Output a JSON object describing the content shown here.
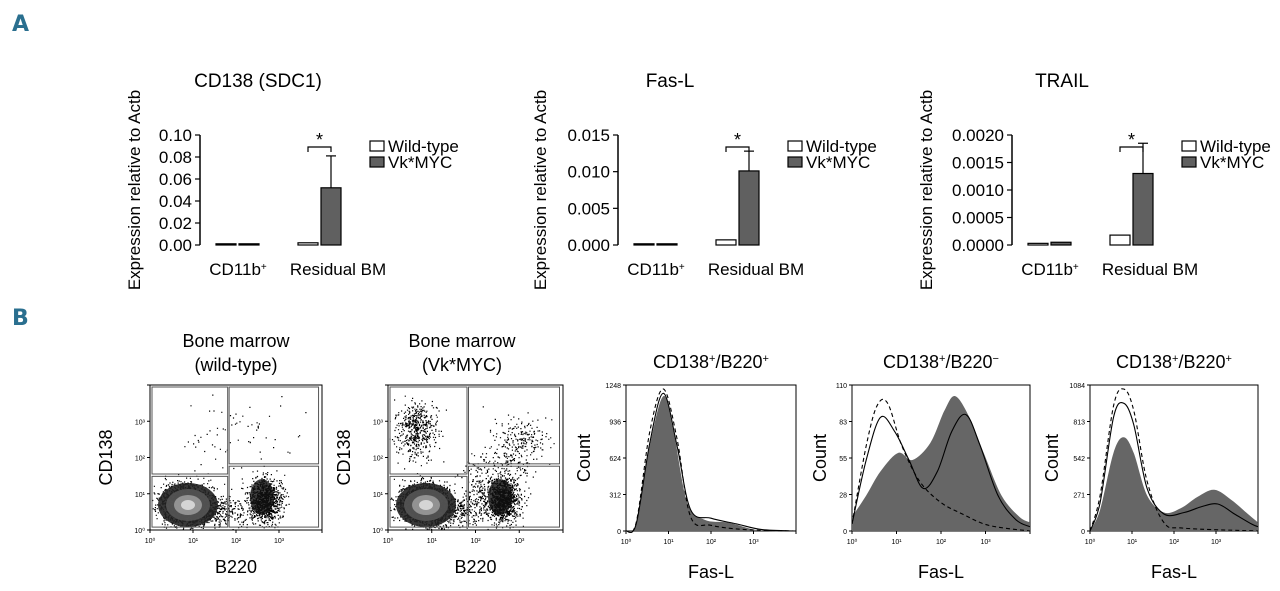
{
  "panel_labels": [
    "A",
    "B"
  ],
  "panelA": {
    "ylabel": "Expression relative to Actb",
    "legend": [
      "Wild-type",
      "Vk*MYC"
    ],
    "x_category_1": "CD11b",
    "x_category_1_sup": "+",
    "x_category_2": "Residual BM",
    "significance": "*",
    "colors": {
      "wildtype_fill": "#ffffff",
      "vkmyc_fill": "#606060",
      "stroke": "#000000"
    }
  },
  "panelB": {
    "dot_plots": [
      {
        "title_line1": "Bone marrow",
        "title_line2": "(wild-type)",
        "xlabel": "B220",
        "ylabel": "CD138"
      },
      {
        "title_line1": "Bone marrow",
        "title_line2": "(Vk*MYC)",
        "xlabel": "B220",
        "ylabel": "CD138"
      }
    ],
    "histograms": [
      {
        "title": "CD138+/B220+",
        "title_main": "CD138",
        "sup1": "+",
        "mid": "/B220",
        "sup2": "+",
        "xlabel": "Fas-L",
        "ylabel": "Count",
        "yticks": [
          "0",
          "312",
          "624",
          "936",
          "1248"
        ]
      },
      {
        "title": "CD138+/B220−",
        "title_main": "CD138",
        "sup1": "+",
        "mid": "/B220",
        "sup2": "−",
        "xlabel": "Fas-L",
        "ylabel": "Count",
        "yticks": [
          "0",
          "28",
          "55",
          "83",
          "110"
        ]
      },
      {
        "title": "CD138+/B220+",
        "title_main": "CD138",
        "sup1": "+",
        "mid": "/B220",
        "sup2": "+",
        "xlabel": "Fas-L",
        "ylabel": "Count",
        "yticks": [
          "0",
          "271",
          "542",
          "813",
          "1084"
        ]
      }
    ],
    "log_tick_labels": [
      "10⁰",
      "10¹",
      "10²",
      "10³"
    ]
  },
  "chart_data": [
    {
      "type": "bar",
      "title": "CD138 (SDC1)",
      "ylabel": "Expression relative to Actb",
      "categories": [
        "CD11b+",
        "Residual BM"
      ],
      "series": [
        {
          "name": "Wild-type",
          "values": [
            0.001,
            0.002
          ],
          "errors": [
            0,
            0
          ]
        },
        {
          "name": "Vk*MYC",
          "values": [
            0.001,
            0.052
          ],
          "errors": [
            0,
            0.029
          ]
        }
      ],
      "ylim": [
        0,
        0.1
      ],
      "yticks": [
        0.0,
        0.02,
        0.04,
        0.06,
        0.08,
        0.1
      ],
      "yticklabels": [
        "0.00",
        "0.02",
        "0.04",
        "0.06",
        "0.08",
        "0.10"
      ],
      "annotations": [
        "*"
      ]
    },
    {
      "type": "bar",
      "title": "Fas-L",
      "ylabel": "Expression relative to Actb",
      "categories": [
        "CD11b+",
        "Residual BM"
      ],
      "series": [
        {
          "name": "Wild-type",
          "values": [
            0,
            0.0007
          ],
          "errors": [
            0,
            0
          ]
        },
        {
          "name": "Vk*MYC",
          "values": [
            0,
            0.0101
          ],
          "errors": [
            0,
            0.0027
          ]
        }
      ],
      "ylim": [
        0,
        0.015
      ],
      "yticks": [
        0.0,
        0.005,
        0.01,
        0.015
      ],
      "yticklabels": [
        "0.000",
        "0.005",
        "0.010",
        "0.015"
      ],
      "annotations": [
        "*"
      ]
    },
    {
      "type": "bar",
      "title": "TRAIL",
      "ylabel": "Expression relative to Actb",
      "categories": [
        "CD11b+",
        "Residual BM"
      ],
      "series": [
        {
          "name": "Wild-type",
          "values": [
            3e-05,
            0.00018
          ],
          "errors": [
            0,
            0
          ]
        },
        {
          "name": "Vk*MYC",
          "values": [
            5e-05,
            0.0013
          ],
          "errors": [
            0,
            0.00055
          ]
        }
      ],
      "ylim": [
        0,
        0.002
      ],
      "yticks": [
        0.0,
        0.0005,
        0.001,
        0.0015,
        0.002
      ],
      "yticklabels": [
        "0.0000",
        "0.0005",
        "0.0010",
        "0.0015",
        "0.0020"
      ],
      "annotations": [
        "*"
      ]
    }
  ]
}
